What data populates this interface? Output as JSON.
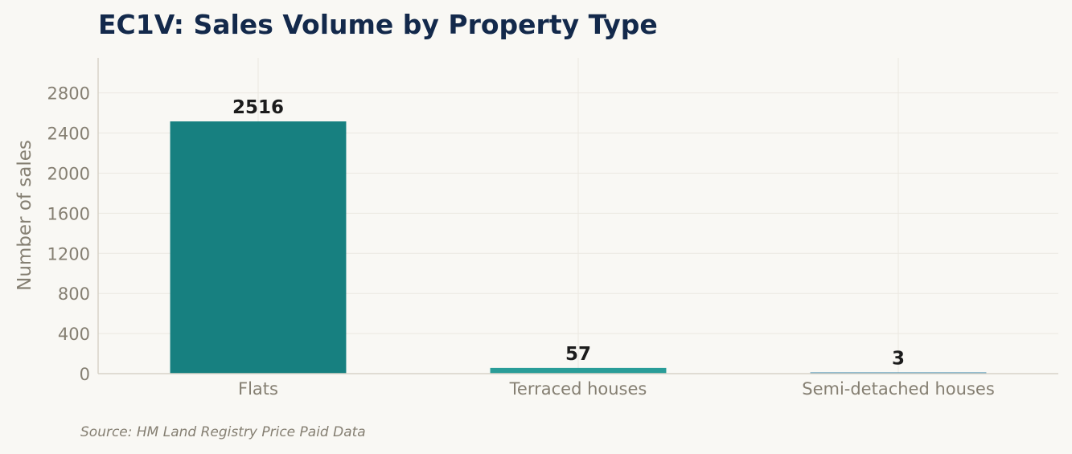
{
  "chart_data": {
    "type": "bar",
    "title": "EC1V: Sales Volume by Property Type",
    "xlabel": "",
    "ylabel": "Number of sales",
    "categories": [
      "Flats",
      "Terraced houses",
      "Semi-detached houses"
    ],
    "values": [
      2516,
      57,
      3
    ],
    "value_labels": [
      "2516",
      "57",
      "3"
    ],
    "bar_colors": [
      "#178080",
      "#2a9d98",
      "#2e7fa8"
    ],
    "ylim": [
      0,
      3150
    ],
    "yticks": [
      0,
      400,
      800,
      1200,
      1600,
      2000,
      2400,
      2800
    ],
    "ytick_labels": [
      "0",
      "400",
      "800",
      "1200",
      "1600",
      "2000",
      "2400",
      "2800"
    ],
    "grid": true,
    "legend": "none"
  },
  "footer": {
    "source": "Source: HM Land Registry Price Paid Data"
  },
  "colors": {
    "background": "#f9f8f4",
    "title": "#13294b",
    "muted_text": "#857f72"
  }
}
